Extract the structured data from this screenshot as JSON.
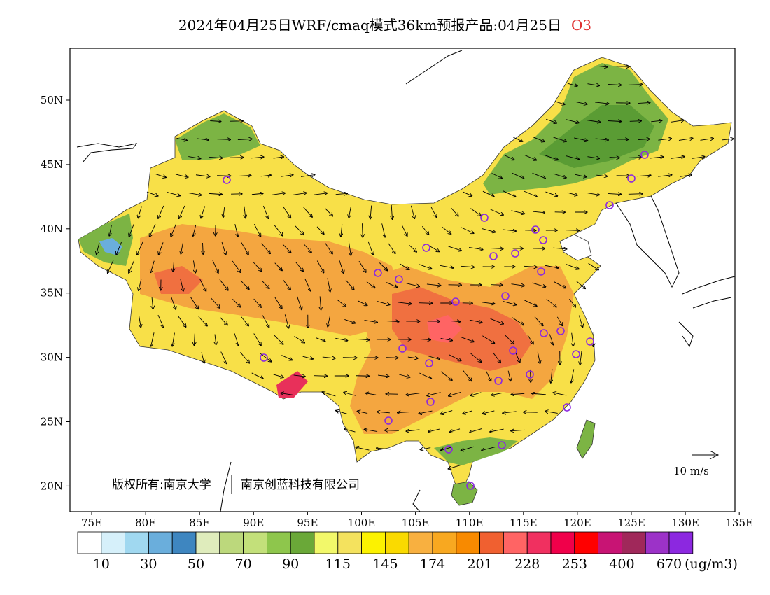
{
  "title": {
    "text": "2024年04月25日WRF/cmaq模式36km预报产品:04月25日",
    "species": "O3"
  },
  "colors": {
    "cb": [
      "#ffffff",
      "#d6f0fa",
      "#a0d8f0",
      "#6aaedc",
      "#3e86c0",
      "#dfecbc",
      "#bcd87c",
      "#c3e07a",
      "#8ec64c",
      "#6aa838",
      "#f2f86a",
      "#f4e25e",
      "#fcf200",
      "#fada00",
      "#f8b040",
      "#f8a820",
      "#f88a00",
      "#f06030",
      "#ff6464",
      "#f03060",
      "#f0004a",
      "#ff0000",
      "#c81474",
      "#a0285a",
      "#9c32c8",
      "#8c28e0"
    ],
    "land_low": "#f8e048",
    "land_mid": "#fad22a",
    "land_hi": "#f4a640",
    "land_peak": "#f07040",
    "land_max": "#e8305a",
    "green": "#7cb444",
    "green_dark": "#5a9c34"
  },
  "map": {
    "lon_labels": [
      "75E",
      "80E",
      "85E",
      "90E",
      "95E",
      "100E",
      "105E",
      "110E",
      "115E",
      "120E",
      "125E",
      "130E",
      "135E"
    ],
    "lat_labels": [
      "50N",
      "45N",
      "40N",
      "35N",
      "30N",
      "25N",
      "20N"
    ],
    "wind_ref": "10 m/s",
    "copyright": "版权所有:南京大学",
    "company": "南京创蓝科技有限公司"
  },
  "colorbar": {
    "labels": [
      "10",
      "30",
      "50",
      "70",
      "90",
      "115",
      "145",
      "174",
      "201",
      "228",
      "253",
      "400",
      "670"
    ],
    "unit": "(ug/m3)"
  }
}
